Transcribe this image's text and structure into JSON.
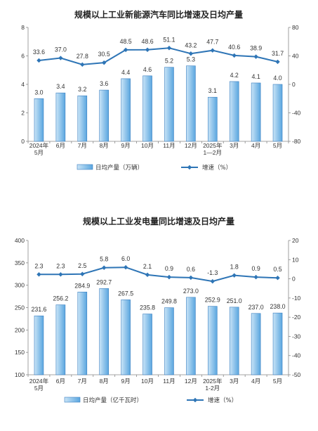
{
  "chart_data": [
    {
      "type": "bar",
      "title": "规模以上工业新能源汽车同比增速及日均产量",
      "categories": [
        {
          "lines": [
            "2024年",
            "5月"
          ]
        },
        {
          "lines": [
            "6月"
          ]
        },
        {
          "lines": [
            "7月"
          ]
        },
        {
          "lines": [
            "8月"
          ]
        },
        {
          "lines": [
            "9月"
          ]
        },
        {
          "lines": [
            "10月"
          ]
        },
        {
          "lines": [
            "11月"
          ]
        },
        {
          "lines": [
            "12月"
          ]
        },
        {
          "lines": [
            "2025年",
            "1—2月"
          ]
        },
        {
          "lines": [
            "3月"
          ]
        },
        {
          "lines": [
            "4月"
          ]
        },
        {
          "lines": [
            "5月"
          ]
        }
      ],
      "series": [
        {
          "name": "日均产量（万辆）",
          "type": "bar",
          "axis": "left",
          "values": [
            3.0,
            3.4,
            3.2,
            3.6,
            4.4,
            4.6,
            5.2,
            5.3,
            3.1,
            4.2,
            4.1,
            4.0
          ],
          "labels": [
            "3.0",
            "3.4",
            "3.2",
            "3.6",
            "4.4",
            "4.6",
            "5.2",
            "5.3",
            "3.1",
            "4.2",
            "4.1",
            "4.0"
          ]
        },
        {
          "name": "增速（%）",
          "type": "line",
          "axis": "right",
          "values": [
            33.6,
            37.0,
            27.8,
            30.5,
            48.5,
            48.6,
            51.1,
            43.2,
            47.7,
            40.6,
            38.9,
            31.7
          ],
          "labels": [
            "33.6",
            "37.0",
            "27.8",
            "30.5",
            "48.5",
            "48.6",
            "51.1",
            "43.2",
            "47.7",
            "40.6",
            "38.9",
            "31.7"
          ]
        }
      ],
      "y_left": {
        "min": 0,
        "max": 8,
        "ticks": [
          "0",
          "2",
          "4",
          "6",
          "8"
        ]
      },
      "y_right": {
        "min": -80,
        "max": 80,
        "ticks": [
          "-80",
          "-40",
          "0",
          "40",
          "80"
        ]
      },
      "legend_placement": "bottom"
    },
    {
      "type": "bar",
      "title": "规模以上工业发电量同比增速及日均产量",
      "categories": [
        {
          "lines": [
            "2024年",
            "5月"
          ]
        },
        {
          "lines": [
            "6月"
          ]
        },
        {
          "lines": [
            "7月"
          ]
        },
        {
          "lines": [
            "8月"
          ]
        },
        {
          "lines": [
            "9月"
          ]
        },
        {
          "lines": [
            "10月"
          ]
        },
        {
          "lines": [
            "11月"
          ]
        },
        {
          "lines": [
            "12月"
          ]
        },
        {
          "lines": [
            "2025年",
            "1-2月"
          ]
        },
        {
          "lines": [
            "3月"
          ]
        },
        {
          "lines": [
            "4月"
          ]
        },
        {
          "lines": [
            "5月"
          ]
        }
      ],
      "series": [
        {
          "name": "日均产量（亿千瓦时）",
          "type": "bar",
          "axis": "left",
          "values": [
            231.6,
            256.2,
            284.9,
            292.7,
            267.5,
            235.8,
            249.8,
            273.0,
            252.9,
            251.0,
            237.0,
            238.0
          ],
          "labels": [
            "231.6",
            "256.2",
            "284.9",
            "292.7",
            "267.5",
            "235.8",
            "249.8",
            "273.0",
            "252.9",
            "251.0",
            "237.0",
            "238.0"
          ]
        },
        {
          "name": "增速（%）",
          "type": "line",
          "axis": "right",
          "values": [
            2.3,
            2.3,
            2.5,
            5.8,
            6.0,
            2.1,
            0.9,
            0.6,
            -1.3,
            1.8,
            0.9,
            0.5
          ],
          "labels": [
            "2.3",
            "2.3",
            "2.5",
            "5.8",
            "6.0",
            "2.1",
            "0.9",
            "0.6",
            "-1.3",
            "1.8",
            "0.9",
            "0.5"
          ]
        }
      ],
      "y_left": {
        "min": 100,
        "max": 400,
        "ticks": [
          "100",
          "150",
          "200",
          "250",
          "300",
          "350",
          "400"
        ]
      },
      "y_right": {
        "min": -50,
        "max": 20,
        "ticks": [
          "-50",
          "-40",
          "-30",
          "-20",
          "-10",
          "0",
          "10",
          "20"
        ]
      },
      "legend_placement": "bottom"
    }
  ],
  "colors": {
    "bar_fill_light": "#c9e4f7",
    "bar_fill_dark": "#5aa6df",
    "bar_stroke": "#3b7fc0",
    "line": "#2e75b6",
    "axis": "#888888"
  }
}
